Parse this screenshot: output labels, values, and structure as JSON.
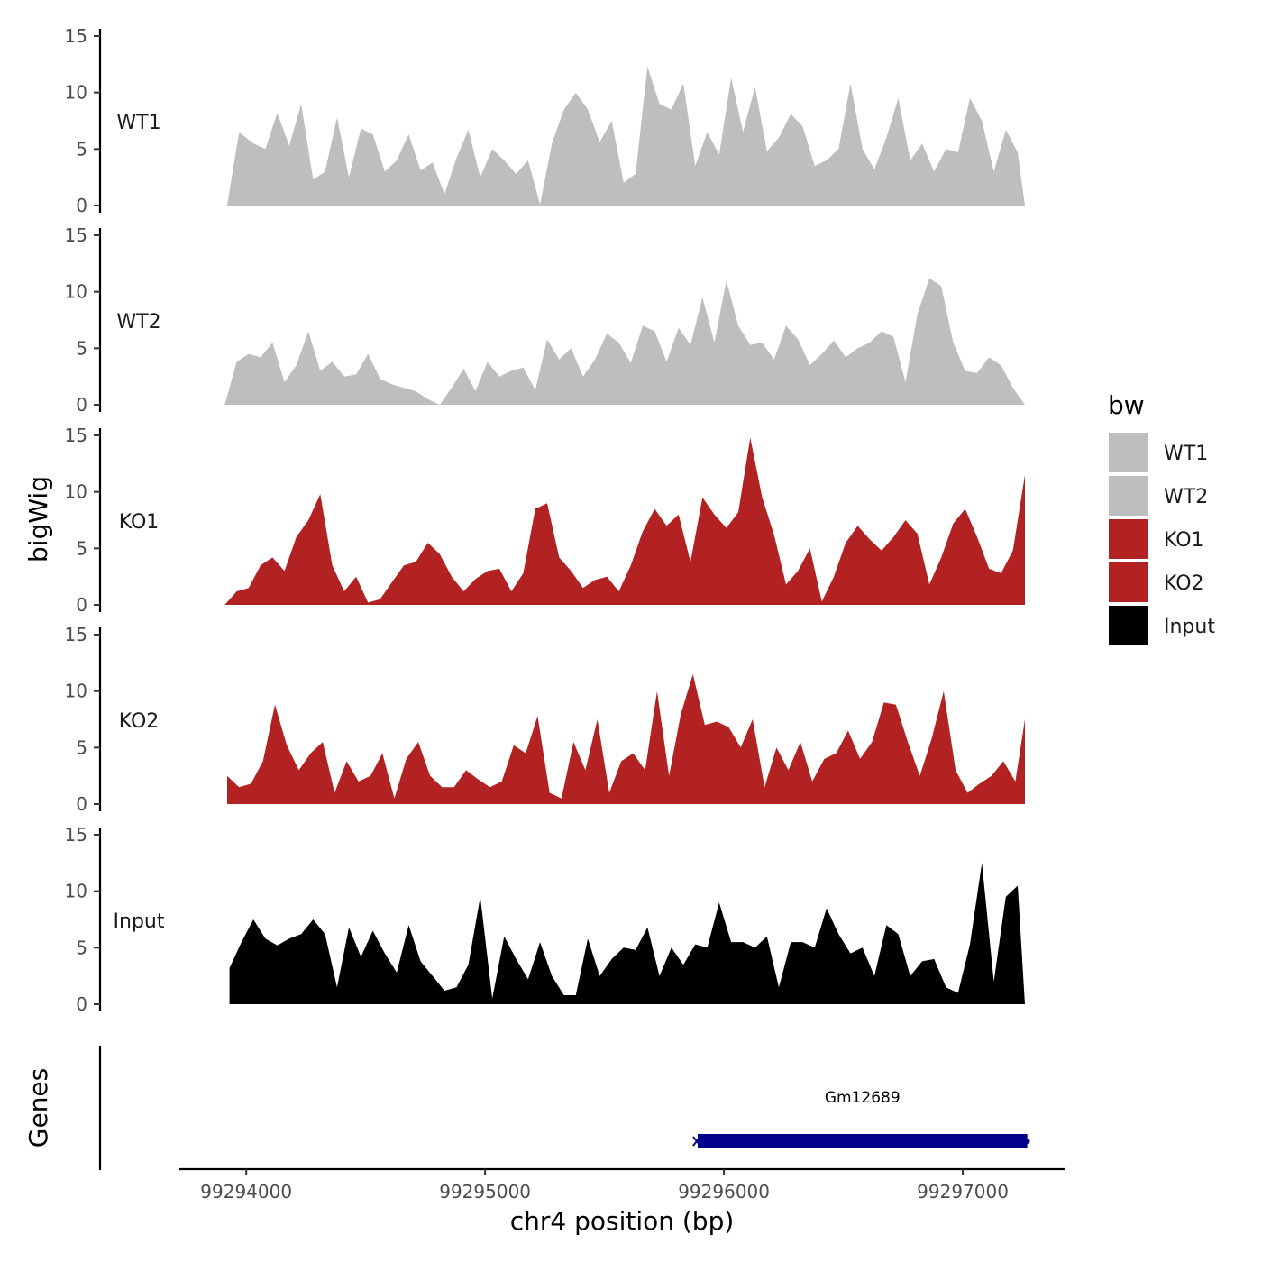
{
  "chart_data": {
    "type": "area",
    "title": "",
    "ylabel": "bigWig",
    "xlabel": "chr4 position (bp)",
    "genes_label": "Genes",
    "ylim": [
      0,
      15
    ],
    "yticks": [
      0,
      5,
      10,
      15
    ],
    "xlim": [
      99293720,
      99297430
    ],
    "xticks": [
      99294000,
      99295000,
      99296000,
      99297000
    ],
    "xtick_labels": [
      "99294000",
      "99295000",
      "99296000",
      "99297000"
    ],
    "legend": {
      "title": "bw",
      "position": "right",
      "entries": [
        {
          "name": "WT1",
          "color": "#bebebe"
        },
        {
          "name": "WT2",
          "color": "#bebebe"
        },
        {
          "name": "KO1",
          "color": "#b22222"
        },
        {
          "name": "KO2",
          "color": "#b22222"
        },
        {
          "name": "Input",
          "color": "#000000"
        }
      ]
    },
    "series": [
      {
        "name": "WT1",
        "color": "#bebebe",
        "x": [
          99293920,
          99293970,
          99294030,
          99294080,
          99294130,
          99294180,
          99294230,
          99294280,
          99294330,
          99294380,
          99294430,
          99294480,
          99294530,
          99294580,
          99294630,
          99294680,
          99294730,
          99294780,
          99294830,
          99294880,
          99294930,
          99294980,
          99295030,
          99295080,
          99295130,
          99295180,
          99295230,
          99295280,
          99295330,
          99295380,
          99295430,
          99295480,
          99295530,
          99295580,
          99295630,
          99295680,
          99295730,
          99295780,
          99295830,
          99295880,
          99295930,
          99295980,
          99296030,
          99296080,
          99296130,
          99296180,
          99296230,
          99296280,
          99296330,
          99296380,
          99296430,
          99296480,
          99296530,
          99296580,
          99296630,
          99296680,
          99296730,
          99296780,
          99296830,
          99296880,
          99296930,
          99296980,
          99297030,
          99297080,
          99297130,
          99297180,
          99297230,
          99297260
        ],
        "values": [
          0,
          6.5,
          5.5,
          5,
          8.2,
          5.3,
          9,
          2.3,
          3,
          7.8,
          2.5,
          6.8,
          6.3,
          3,
          4,
          6.3,
          3.1,
          3.8,
          1,
          4.2,
          6.7,
          2.5,
          5,
          4,
          2.8,
          4,
          0.1,
          5.5,
          8.5,
          10,
          8.5,
          5.6,
          7.5,
          2,
          2.8,
          12.3,
          9,
          8.5,
          10.8,
          3.5,
          6.5,
          4.5,
          11.3,
          6.5,
          10.5,
          4.8,
          6,
          8.1,
          7,
          3.5,
          4,
          5,
          10.8,
          5,
          3.2,
          6,
          9.5,
          4,
          5.5,
          3,
          5,
          4.7,
          9.5,
          7.5,
          3,
          6.7,
          4.7,
          0
        ]
      },
      {
        "name": "WT2",
        "color": "#bebebe",
        "x": [
          99293910,
          99293960,
          99294010,
          99294060,
          99294110,
          99294160,
          99294210,
          99294260,
          99294310,
          99294360,
          99294410,
          99294460,
          99294510,
          99294560,
          99294610,
          99294660,
          99294710,
          99294760,
          99294810,
          99294860,
          99294910,
          99294960,
          99295010,
          99295060,
          99295110,
          99295160,
          99295210,
          99295260,
          99295310,
          99295360,
          99295410,
          99295460,
          99295510,
          99295560,
          99295610,
          99295660,
          99295710,
          99295760,
          99295810,
          99295860,
          99295910,
          99295960,
          99296010,
          99296060,
          99296110,
          99296160,
          99296210,
          99296260,
          99296310,
          99296360,
          99296410,
          99296460,
          99296510,
          99296560,
          99296610,
          99296660,
          99296710,
          99296760,
          99296810,
          99296860,
          99296910,
          99296960,
          99297010,
          99297060,
          99297110,
          99297160,
          99297210,
          99297260
        ],
        "values": [
          0,
          3.8,
          4.5,
          4.2,
          5.5,
          2,
          3.5,
          6.5,
          3,
          3.8,
          2.5,
          2.7,
          4.5,
          2.3,
          1.8,
          1.5,
          1.2,
          0.5,
          0,
          1.5,
          3.2,
          1.2,
          3.8,
          2.5,
          3,
          3.3,
          1.3,
          5.8,
          4,
          5,
          2.5,
          4,
          6.3,
          5.5,
          3.7,
          7,
          6.5,
          3.8,
          6.8,
          5.3,
          9.5,
          5.5,
          11,
          7,
          5.3,
          5.5,
          4,
          7,
          5.8,
          3.5,
          4.5,
          5.7,
          4.2,
          5,
          5.5,
          6.5,
          6,
          2,
          8,
          11.2,
          10.5,
          5.5,
          3,
          2.8,
          4.2,
          3.5,
          1.5,
          0
        ]
      },
      {
        "name": "KO1",
        "color": "#b22222",
        "x": [
          99293910,
          99293960,
          99294010,
          99294060,
          99294110,
          99294160,
          99294210,
          99294260,
          99294310,
          99294360,
          99294410,
          99294460,
          99294510,
          99294560,
          99294610,
          99294660,
          99294710,
          99294760,
          99294810,
          99294860,
          99294910,
          99294960,
          99295010,
          99295060,
          99295110,
          99295160,
          99295210,
          99295260,
          99295310,
          99295360,
          99295410,
          99295460,
          99295510,
          99295560,
          99295610,
          99295660,
          99295710,
          99295760,
          99295810,
          99295860,
          99295910,
          99295960,
          99296010,
          99296060,
          99296110,
          99296160,
          99296210,
          99296260,
          99296310,
          99296360,
          99296410,
          99296460,
          99296510,
          99296560,
          99296610,
          99296660,
          99296710,
          99296760,
          99296810,
          99296860,
          99296910,
          99296960,
          99297010,
          99297060,
          99297110,
          99297160,
          99297210,
          99297260
        ],
        "values": [
          0,
          1.2,
          1.5,
          3.5,
          4.2,
          3,
          6,
          7.5,
          9.8,
          3.5,
          1.2,
          2.5,
          0.2,
          0.5,
          2,
          3.5,
          3.8,
          5.5,
          4.5,
          2.5,
          1.2,
          2.3,
          3,
          3.2,
          1.2,
          2.8,
          8.5,
          9,
          4.2,
          3,
          1.5,
          2.2,
          2.5,
          1.2,
          3.5,
          6.5,
          8.5,
          7,
          8,
          3.8,
          9.5,
          8,
          6.8,
          8.2,
          14.8,
          9.5,
          6.2,
          1.8,
          3,
          5,
          0.3,
          2.5,
          5.5,
          7,
          5.8,
          4.8,
          6,
          7.5,
          6.3,
          1.8,
          4.2,
          7.2,
          8.5,
          6,
          3.2,
          2.8,
          4.8,
          11.5
        ]
      },
      {
        "name": "KO2",
        "color": "#b22222",
        "x": [
          99293920,
          99293970,
          99294020,
          99294070,
          99294120,
          99294170,
          99294220,
          99294270,
          99294320,
          99294370,
          99294420,
          99294470,
          99294520,
          99294570,
          99294620,
          99294670,
          99294720,
          99294770,
          99294820,
          99294870,
          99294920,
          99294970,
          99295020,
          99295070,
          99295120,
          99295170,
          99295220,
          99295270,
          99295320,
          99295370,
          99295420,
          99295470,
          99295520,
          99295570,
          99295620,
          99295670,
          99295720,
          99295770,
          99295820,
          99295870,
          99295920,
          99295970,
          99296020,
          99296070,
          99296120,
          99296170,
          99296220,
          99296270,
          99296320,
          99296370,
          99296420,
          99296470,
          99296520,
          99296570,
          99296620,
          99296670,
          99296720,
          99296770,
          99296820,
          99296870,
          99296920,
          99296970,
          99297020,
          99297070,
          99297120,
          99297170,
          99297220,
          99297260
        ],
        "values": [
          2.5,
          1.5,
          1.8,
          3.8,
          8.8,
          5.2,
          3,
          4.5,
          5.5,
          1,
          3.8,
          2,
          2.5,
          4.5,
          0.5,
          4,
          5.5,
          2.5,
          1.5,
          1.5,
          3,
          2.2,
          1.5,
          2,
          5.2,
          4.5,
          7.8,
          1,
          0.5,
          5.5,
          3,
          7.5,
          1,
          3.8,
          4.5,
          3,
          10,
          2.5,
          8,
          11.5,
          7,
          7.3,
          6.8,
          5,
          7.5,
          1.5,
          5,
          3,
          5.5,
          2,
          4,
          4.5,
          6.5,
          4,
          5.5,
          9,
          8.8,
          5.5,
          2.5,
          5.8,
          10,
          3,
          1,
          1.8,
          2.5,
          3.8,
          2,
          7.5
        ]
      },
      {
        "name": "Input",
        "color": "#000000",
        "x": [
          99293930,
          99293980,
          99294030,
          99294080,
          99294130,
          99294180,
          99294230,
          99294280,
          99294330,
          99294380,
          99294430,
          99294480,
          99294530,
          99294580,
          99294630,
          99294680,
          99294730,
          99294780,
          99294830,
          99294880,
          99294930,
          99294980,
          99295030,
          99295080,
          99295130,
          99295180,
          99295230,
          99295280,
          99295330,
          99295380,
          99295430,
          99295480,
          99295530,
          99295580,
          99295630,
          99295680,
          99295730,
          99295780,
          99295830,
          99295880,
          99295930,
          99295980,
          99296030,
          99296080,
          99296130,
          99296180,
          99296230,
          99296280,
          99296330,
          99296380,
          99296430,
          99296480,
          99296530,
          99296580,
          99296630,
          99296680,
          99296730,
          99296780,
          99296830,
          99296880,
          99296930,
          99296980,
          99297030,
          99297080,
          99297130,
          99297180,
          99297230,
          99297260
        ],
        "values": [
          3.2,
          5.5,
          7.5,
          5.8,
          5.2,
          5.8,
          6.2,
          7.5,
          6.2,
          1.5,
          6.8,
          4.2,
          6.5,
          4.5,
          2.8,
          7,
          3.8,
          2.5,
          1.2,
          1.5,
          3.5,
          9.5,
          0.5,
          6,
          4,
          2.2,
          5.5,
          2.5,
          0.8,
          0.8,
          5.8,
          2.5,
          4,
          5,
          4.8,
          6.8,
          2.5,
          5,
          3.5,
          5.3,
          5,
          9,
          5.5,
          5.5,
          5,
          6,
          1.5,
          5.5,
          5.5,
          5,
          8.5,
          6.2,
          4.5,
          5,
          2.5,
          7,
          6.2,
          2.5,
          3.8,
          4,
          1.5,
          1,
          5.3,
          12.5,
          2,
          9.5,
          10.5,
          0
        ]
      }
    ],
    "genes": [
      {
        "name": "Gm12689",
        "chrom": "chr4",
        "start": 99295890,
        "end": 99297270,
        "color": "#00008b"
      }
    ]
  }
}
